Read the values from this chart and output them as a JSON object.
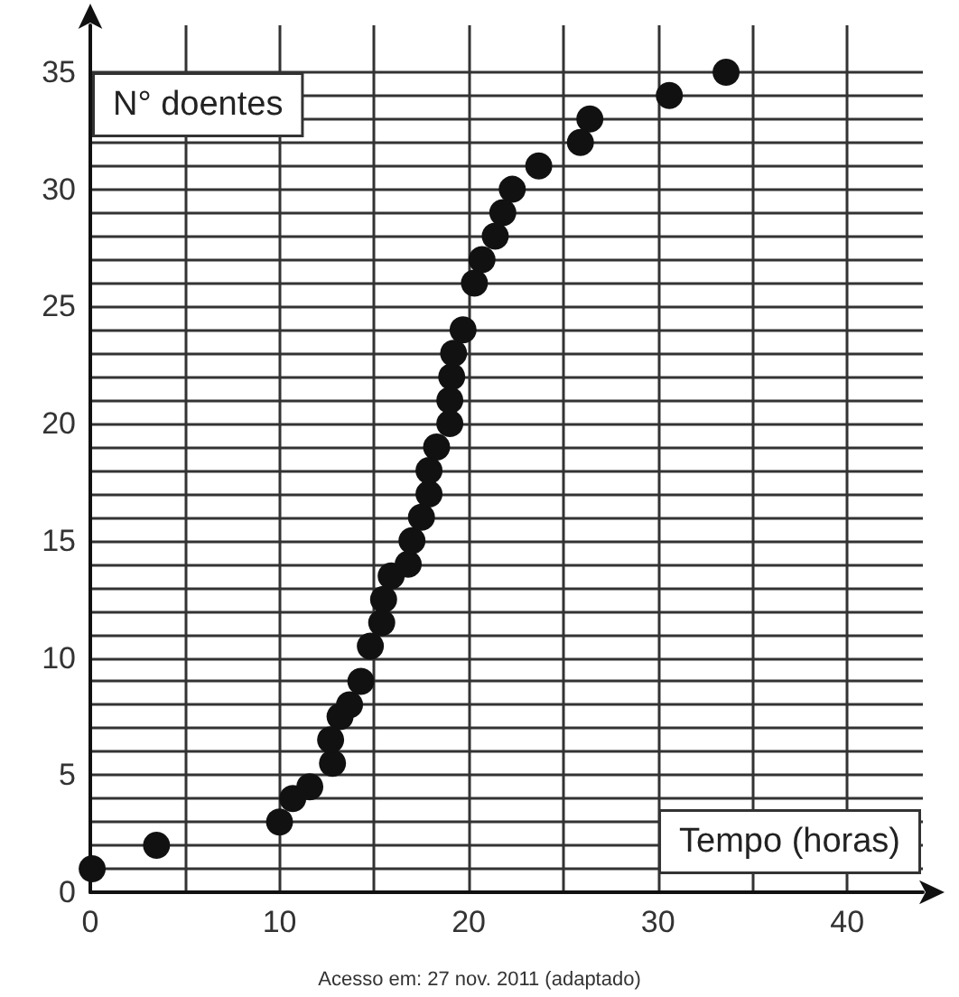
{
  "chart_data": {
    "type": "scatter",
    "xlabel": "Tempo (horas)",
    "ylabel": "N° doentes",
    "annotations": [
      "Acesso em: 27 nov. 2011 (adaptado)"
    ],
    "x": [
      0.1,
      3.5,
      10,
      10.7,
      11.6,
      12.8,
      12.7,
      13.2,
      13.7,
      14.3,
      14.8,
      15.4,
      15.5,
      15.9,
      16.8,
      17,
      17.5,
      17.9,
      17.9,
      18.3,
      19,
      19,
      19.1,
      19.2,
      19.7,
      20.3,
      20.7,
      21.4,
      21.8,
      22.3,
      23.7,
      25.9,
      26.4,
      30.6,
      33.6
    ],
    "values": [
      1,
      2,
      3,
      4,
      4.5,
      5.5,
      6.5,
      7.5,
      8,
      9,
      10.5,
      11.5,
      12.5,
      13.5,
      14,
      15,
      16,
      17,
      18,
      19,
      20,
      21,
      22,
      23,
      24,
      26,
      27,
      28,
      29,
      30,
      31,
      32,
      33,
      34,
      35
    ],
    "color": "#111111",
    "marker": "circle",
    "grid": true,
    "xlim": [
      0,
      44
    ],
    "ylim": [
      0,
      37
    ],
    "xticks": [
      0,
      {
        "value": 5,
        "label": null
      },
      10,
      {
        "value": 15,
        "label": null
      },
      20,
      {
        "value": 25,
        "label": null
      },
      30,
      {
        "value": 35,
        "label": null
      },
      40
    ],
    "yticks": [
      0,
      {
        "value": 1,
        "label": null
      },
      {
        "value": 2,
        "label": null
      },
      {
        "value": 3,
        "label": null
      },
      {
        "value": 4,
        "label": null
      },
      5,
      {
        "value": 6,
        "label": null
      },
      {
        "value": 7,
        "label": null
      },
      {
        "value": 8,
        "label": null
      },
      {
        "value": 9,
        "label": null
      },
      10,
      {
        "value": 11,
        "label": null
      },
      {
        "value": 12,
        "label": null
      },
      {
        "value": 13,
        "label": null
      },
      {
        "value": 14,
        "label": null
      },
      15,
      {
        "value": 16,
        "label": null
      },
      {
        "value": 17,
        "label": null
      },
      {
        "value": 18,
        "label": null
      },
      {
        "value": 19,
        "label": null
      },
      20,
      {
        "value": 21,
        "label": null
      },
      {
        "value": 22,
        "label": null
      },
      {
        "value": 23,
        "label": null
      },
      {
        "value": 24,
        "label": null
      },
      25,
      {
        "value": 26,
        "label": null
      },
      {
        "value": 27,
        "label": null
      },
      {
        "value": 28,
        "label": null
      },
      {
        "value": 29,
        "label": null
      },
      30,
      {
        "value": 31,
        "label": null
      },
      {
        "value": 32,
        "label": null
      },
      {
        "value": 33,
        "label": null
      },
      {
        "value": 34,
        "label": null
      },
      35
    ]
  }
}
